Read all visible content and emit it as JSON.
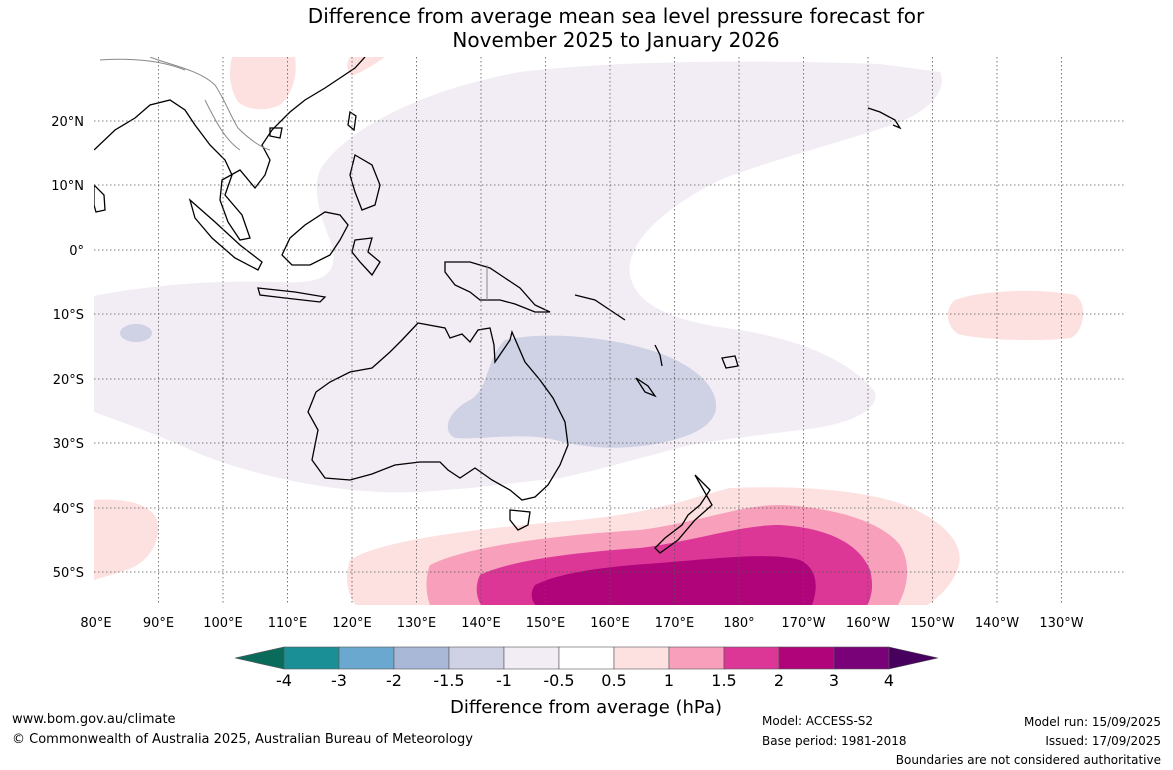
{
  "title_line1": "Difference from average mean sea level pressure forecast for",
  "title_line2": "November 2025 to January 2026",
  "lat_labels": [
    "20°N",
    "10°N",
    "0°",
    "10°S",
    "20°S",
    "30°S",
    "40°S",
    "50°S"
  ],
  "lon_labels": [
    "80°E",
    "90°E",
    "100°E",
    "110°E",
    "120°E",
    "130°E",
    "140°E",
    "150°E",
    "160°E",
    "170°E",
    "180°",
    "170°W",
    "160°W",
    "150°W",
    "140°W",
    "130°W"
  ],
  "colorbar": {
    "colors": [
      "#0b6b5a",
      "#1a9096",
      "#6aa8d0",
      "#a8b8d6",
      "#cfd1e5",
      "#f2ecf4",
      "#ffffff",
      "#fde0e0",
      "#f79fbb",
      "#dc3797",
      "#b0057a",
      "#7a0278",
      "#48005f"
    ],
    "tick_labels": [
      "-4",
      "-3",
      "-2",
      "-1.5",
      "-1",
      "-0.5",
      "0.5",
      "1",
      "1.5",
      "2",
      "3",
      "4"
    ],
    "label": "Difference from average (hPa)"
  },
  "footer": {
    "website": "www.bom.gov.au/climate",
    "copyright": "© Commonwealth of Australia 2025, Australian Bureau of Meteorology",
    "model": "Model: ACCESS-S2",
    "base_period": "Base period: 1981-2018",
    "model_run": "Model run: 15/09/2025",
    "issued": "Issued: 17/09/2025",
    "disclaimer": "Boundaries are not considered authoritative"
  }
}
